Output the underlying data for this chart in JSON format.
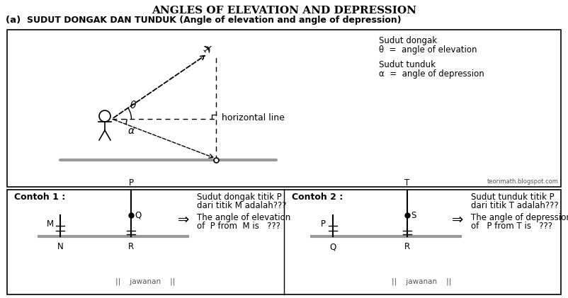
{
  "title": "ANGLES OF ELEVATION AND DEPRESSION",
  "subtitle_a": "(a)   ",
  "subtitle_text": "SUDUT DONGAK DAN TUNDUK (Angle of elevation and angle of depression)",
  "legend_line1": "Sudut dongak",
  "legend_line2": "θ  =  angle of elevation",
  "legend_line3": "Sudut tunduk",
  "legend_line4": "α  =  angle of depression",
  "horiz_label": "horizontal line",
  "watermark": "teorimath.blogspot.com",
  "contoh1_title": "Contoh 1 :",
  "contoh1_text1": "Sudut dongak titik P",
  "contoh1_text2": "dari titik M adalah???",
  "contoh1_text3": "The angle of elevation",
  "contoh1_text4": "of  P from  M is   ???",
  "contoh2_title": "Contoh 2 :",
  "contoh2_text1": "Sudut tunduk titik P",
  "contoh2_text2": "dari titik T adalah???",
  "contoh2_text3": "The angle of depression",
  "contoh2_text4": "of   P from T is   ???",
  "jawaban1": "||    jawanan    ||",
  "jawaban2": "||    jawanan    ||",
  "bg_color": "#ffffff",
  "fig_width": 8.02,
  "fig_height": 4.21,
  "fig_dpi": 100
}
